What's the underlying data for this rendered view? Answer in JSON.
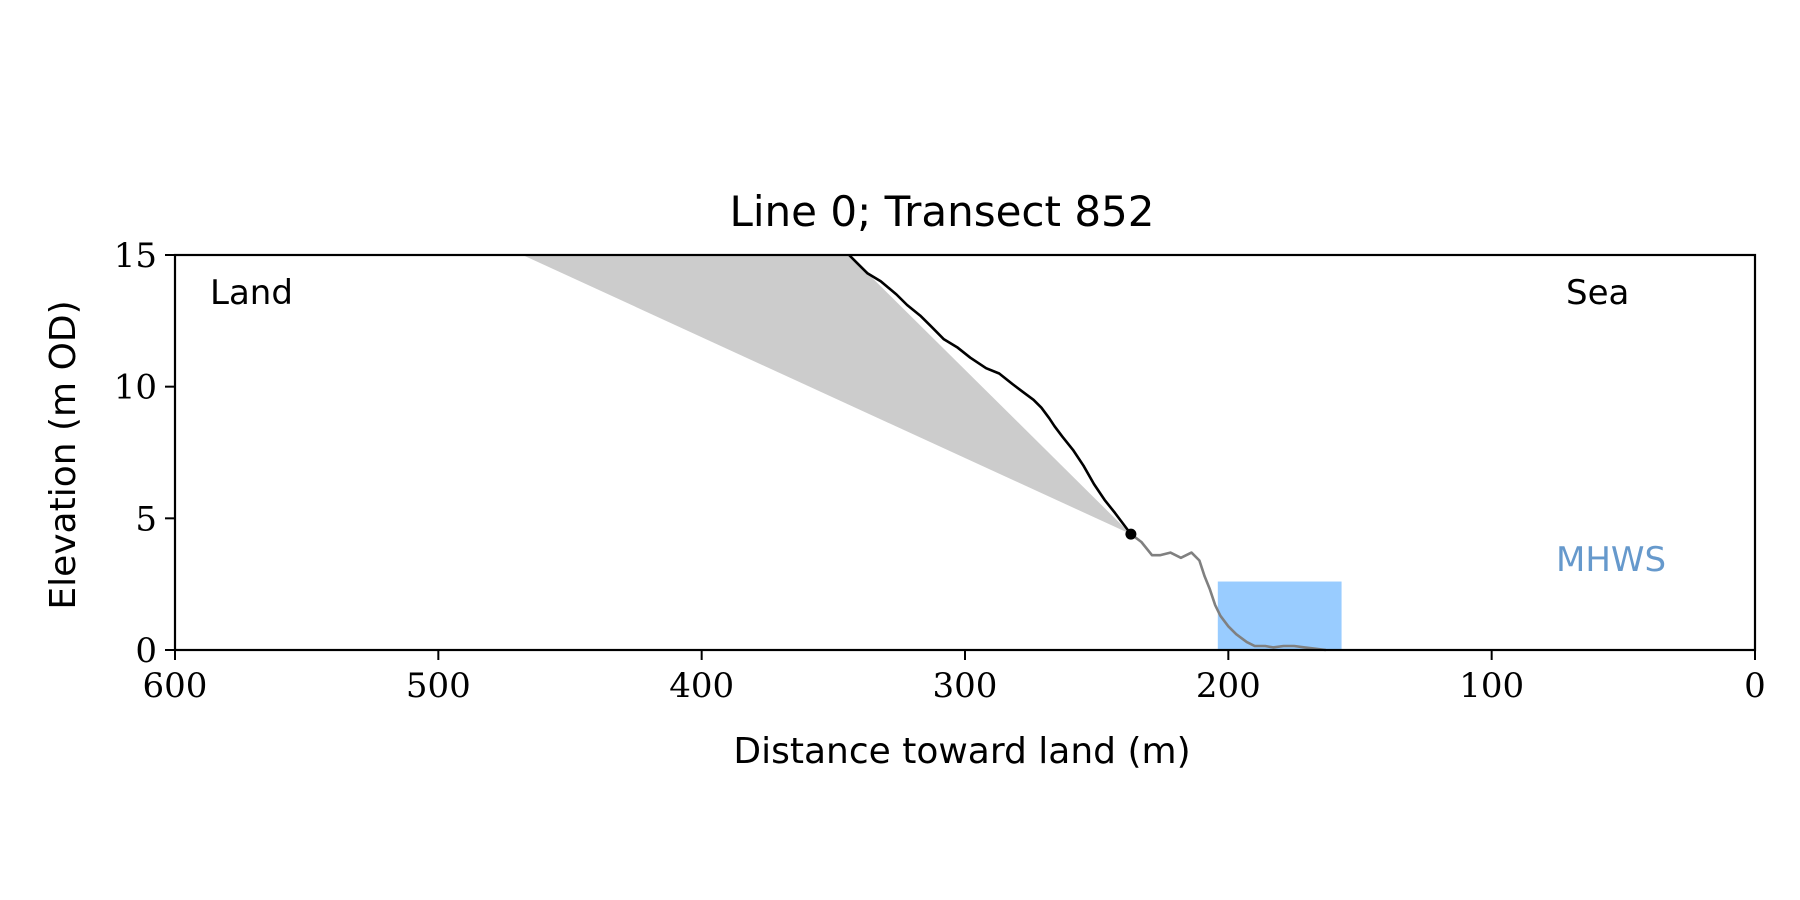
{
  "chart_data": {
    "type": "line",
    "title": "Line 0; Transect 852",
    "xlabel": "Distance toward land (m)",
    "ylabel": "Elevation (m OD)",
    "xlim": [
      600,
      0
    ],
    "ylim": [
      0,
      15
    ],
    "x_reversed": true,
    "grid": false,
    "x_ticks": [
      600,
      500,
      400,
      300,
      200,
      100,
      0
    ],
    "y_ticks": [
      0,
      5,
      10,
      15
    ],
    "annotations": {
      "land": "Land",
      "sea": "Sea",
      "mhws": "MHWS"
    },
    "colors": {
      "cliff_line": "#000000",
      "beach_line": "#808080",
      "shaded_area": "#cccccc",
      "mhws_fill": "#99ccff",
      "mhws_text": "#6699cc"
    },
    "series": [
      {
        "role": "cliff-profile",
        "x": [
          344,
          341,
          337,
          332,
          326,
          322,
          317,
          313,
          308,
          303,
          298,
          292,
          287,
          282,
          278,
          274,
          271,
          268,
          266,
          263,
          259,
          255,
          251,
          247,
          243,
          240,
          237
        ],
        "y": [
          15.0,
          14.7,
          14.3,
          14.0,
          13.5,
          13.1,
          12.7,
          12.3,
          11.8,
          11.5,
          11.1,
          10.7,
          10.5,
          10.1,
          9.8,
          9.5,
          9.2,
          8.8,
          8.5,
          8.1,
          7.6,
          7.0,
          6.3,
          5.7,
          5.2,
          4.8,
          4.4
        ]
      },
      {
        "role": "beach-profile",
        "x": [
          237,
          233,
          229,
          226,
          222,
          218,
          214,
          211,
          209,
          207,
          205,
          203,
          200,
          197,
          193,
          190,
          186,
          183,
          179,
          175,
          171,
          167,
          163
        ],
        "y": [
          4.4,
          4.1,
          3.6,
          3.6,
          3.7,
          3.5,
          3.7,
          3.4,
          2.8,
          2.3,
          1.7,
          1.3,
          0.9,
          0.6,
          0.3,
          0.15,
          0.15,
          0.1,
          0.15,
          0.15,
          0.1,
          0.05,
          0.0
        ]
      }
    ],
    "marker_point": {
      "x": 237,
      "y": 4.4
    },
    "shaded_region": {
      "note": "triangle between shore platform line and cliff",
      "vertices": [
        [
          468,
          15
        ],
        [
          344,
          15
        ],
        [
          237,
          4.4
        ]
      ]
    },
    "mhws_box": {
      "x_from": 204,
      "x_to": 157,
      "y_from": 0,
      "y_to": 2.6
    }
  }
}
